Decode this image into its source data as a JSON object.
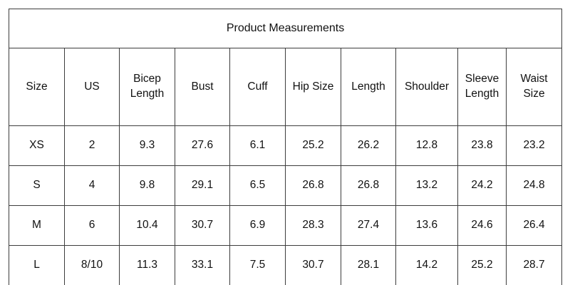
{
  "chart_data": {
    "type": "table",
    "title": "Product Measurements",
    "columns": [
      "Size",
      "US",
      "Bicep Length",
      "Bust",
      "Cuff",
      "Hip Size",
      "Length",
      "Shoulder",
      "Sleeve Length",
      "Waist Size"
    ],
    "rows": [
      [
        "XS",
        "2",
        "9.3",
        "27.6",
        "6.1",
        "25.2",
        "26.2",
        "12.8",
        "23.8",
        "23.2"
      ],
      [
        "S",
        "4",
        "9.8",
        "29.1",
        "6.5",
        "26.8",
        "26.8",
        "13.2",
        "24.2",
        "24.8"
      ],
      [
        "M",
        "6",
        "10.4",
        "30.7",
        "6.9",
        "28.3",
        "27.4",
        "13.6",
        "24.6",
        "26.4"
      ],
      [
        "L",
        "8/10",
        "11.3",
        "33.1",
        "7.5",
        "30.7",
        "28.1",
        "14.2",
        "25.2",
        "28.7"
      ]
    ],
    "layout": {
      "grid": "on",
      "title_position": "top-merged-row",
      "header_wrap": "multi-line"
    }
  },
  "colors": {
    "border": "#3d3d3d",
    "text": "#111111",
    "background": "#ffffff"
  }
}
